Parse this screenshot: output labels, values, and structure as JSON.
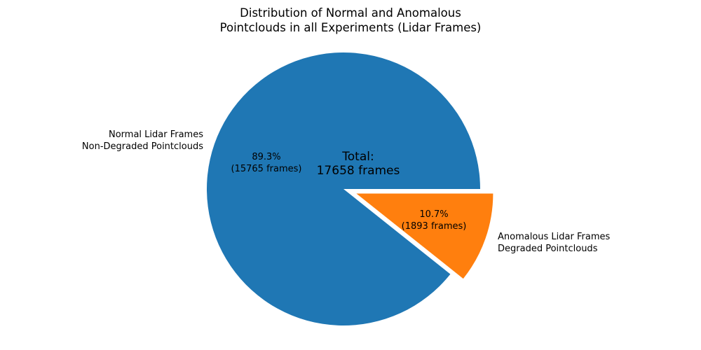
{
  "chart_data": {
    "type": "pie",
    "title": "Distribution of Normal and Anomalous\nPointclouds in all Experiments (Lidar Frames)",
    "total": 17658,
    "center_annotation": "Total:\n17658 frames",
    "start_angle": 0,
    "direction": "counterclockwise",
    "legend": "none",
    "slices": [
      {
        "name": "normal",
        "label": "Normal Lidar Frames\nNon-Degraded Pointclouds",
        "value": 15765,
        "pct": 89.3,
        "pct_label": "89.3%\n(15765 frames)",
        "color": "#1f77b4",
        "explode": 0
      },
      {
        "name": "anomalous",
        "label": "Anomalous Lidar Frames\nDegraded Pointclouds",
        "value": 1893,
        "pct": 10.7,
        "pct_label": "10.7%\n(1893 frames)",
        "color": "#ff7f0e",
        "explode": 0.1
      }
    ]
  }
}
